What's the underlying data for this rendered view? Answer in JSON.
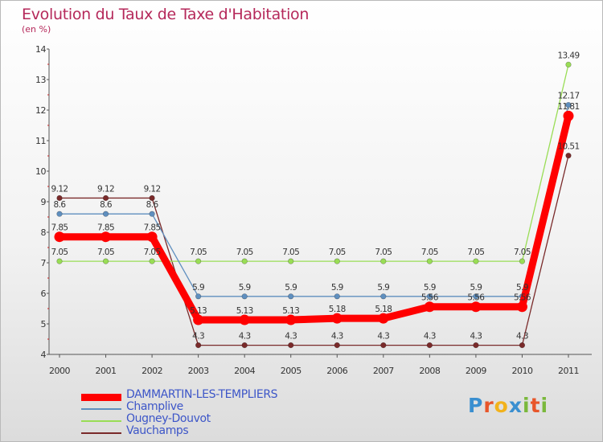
{
  "header": {
    "title": "Evolution du Taux de Taxe d'Habitation",
    "subtitle": "(en %)"
  },
  "logo": {
    "letters": [
      "P",
      "r",
      "o",
      "x",
      "i",
      "t",
      "i"
    ],
    "colors": [
      "#3a8fd0",
      "#e8562a",
      "#f2b21b",
      "#3a8fd0",
      "#7ab83c",
      "#e8562a",
      "#7ab83c"
    ]
  },
  "colors": {
    "title": "#b5285a",
    "legend_text": "#3d56c8",
    "axis_text": "#333333"
  },
  "chart_data": {
    "type": "line",
    "title": "Evolution du Taux de Taxe d'Habitation",
    "ylabel": "(en %)",
    "xlabel": "",
    "x": [
      "2000",
      "2001",
      "2002",
      "2003",
      "2004",
      "2005",
      "2006",
      "2007",
      "2008",
      "2009",
      "2010",
      "2011"
    ],
    "ylim": [
      4,
      14
    ],
    "yticks": [
      4,
      5,
      6,
      7,
      8,
      9,
      10,
      11,
      12,
      13,
      14
    ],
    "grid": false,
    "legend_position": "bottom-left",
    "series": [
      {
        "name": "DAMMARTIN-LES-TEMPLIERS",
        "color": "#ff0000",
        "values": [
          7.85,
          7.85,
          7.85,
          5.13,
          5.13,
          5.13,
          5.18,
          5.18,
          5.56,
          5.56,
          5.56,
          11.81
        ],
        "labels": [
          "7.85",
          "7.85",
          "7.85",
          "5.13",
          "5.13",
          "5.13",
          "5.18",
          "5.18",
          "5.56",
          "5.56",
          "5.56",
          "11.81"
        ]
      },
      {
        "name": "Champlive",
        "color": "#5f8fbf",
        "values": [
          8.6,
          8.6,
          8.6,
          5.9,
          5.9,
          5.9,
          5.9,
          5.9,
          5.9,
          5.9,
          5.9,
          12.17
        ],
        "labels": [
          "8.6",
          "8.6",
          "8.6",
          "5.9",
          "5.9",
          "5.9",
          "5.9",
          "5.9",
          "5.9",
          "5.9",
          "5.9",
          "12.17"
        ]
      },
      {
        "name": "Ougney-Douvot",
        "color": "#99dd55",
        "values": [
          7.05,
          7.05,
          7.05,
          7.05,
          7.05,
          7.05,
          7.05,
          7.05,
          7.05,
          7.05,
          7.05,
          13.49
        ],
        "labels": [
          "7.05",
          "7.05",
          "7.05",
          "7.05",
          "7.05",
          "7.05",
          "7.05",
          "7.05",
          "7.05",
          "7.05",
          "7.05",
          "13.49"
        ]
      },
      {
        "name": "Vauchamps",
        "color": "#7a2a2a",
        "values": [
          9.12,
          9.12,
          9.12,
          4.3,
          4.3,
          4.3,
          4.3,
          4.3,
          4.3,
          4.3,
          4.3,
          10.51
        ],
        "labels": [
          "9.12",
          "9.12",
          "9.12",
          "4.3",
          "4.3",
          "4.3",
          "4.3",
          "4.3",
          "4.3",
          "4.3",
          "4.3",
          "10.51"
        ]
      }
    ]
  }
}
